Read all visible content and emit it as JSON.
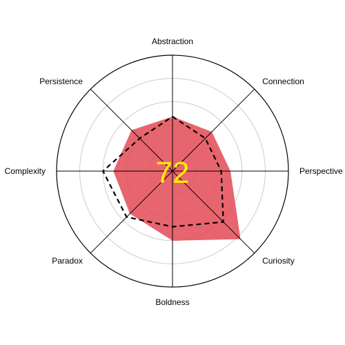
{
  "chart_data": {
    "type": "radar",
    "axes": [
      "Abstraction",
      "Connection",
      "Perspective",
      "Curiosity",
      "Boldness",
      "Paradox",
      "Complexity",
      "Persistence"
    ],
    "range": [
      0,
      100
    ],
    "ring_levels": [
      20,
      40,
      60,
      80,
      100
    ],
    "series": [
      {
        "values": [
          47,
          48,
          50,
          83,
          60,
          52,
          51,
          50
        ],
        "style": "filled",
        "color": "#e34a55"
      },
      {
        "values": [
          47,
          40,
          42,
          62,
          48,
          56,
          60,
          40
        ],
        "style": "dashed",
        "color": "#000000"
      }
    ],
    "center_value": "72",
    "center_color": "#ffee00",
    "grid": true
  }
}
